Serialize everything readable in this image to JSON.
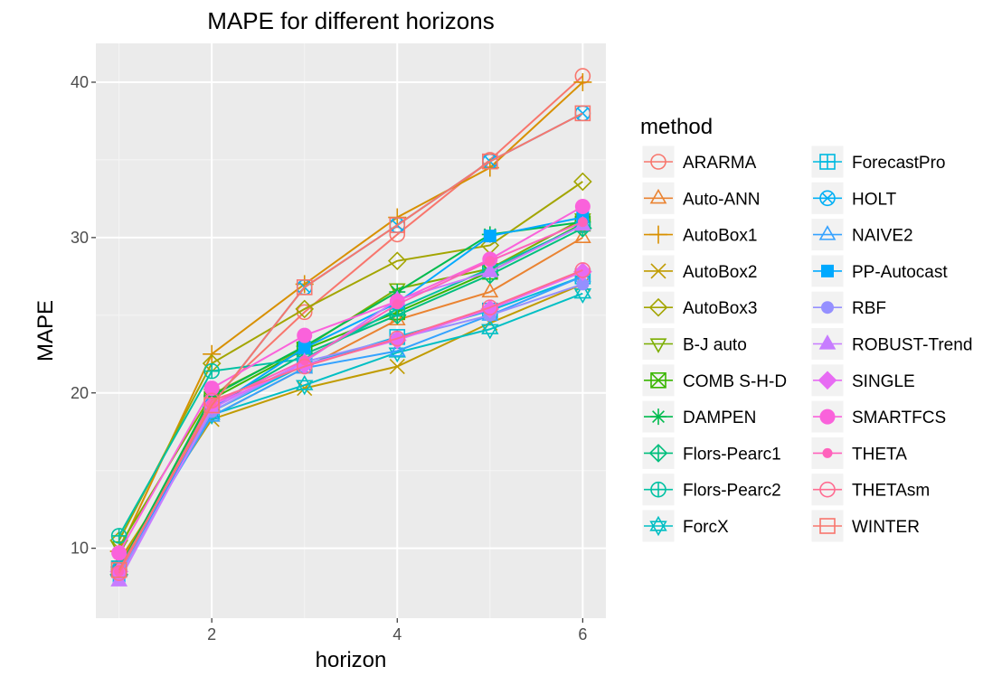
{
  "chart_data": {
    "type": "line",
    "title": "MAPE for different horizons",
    "xlabel": "horizon",
    "ylabel": "MAPE",
    "xlim": [
      0.75,
      6.25
    ],
    "ylim": [
      5.5,
      42.5
    ],
    "x_ticks": [
      2,
      4,
      6
    ],
    "y_ticks": [
      10,
      20,
      30,
      40
    ],
    "x_tick_labels": [
      "2",
      "4",
      "6"
    ],
    "y_tick_labels": [
      "10",
      "20",
      "30",
      "40"
    ],
    "grid": true,
    "background": "#ebebeb",
    "legend_title": "method",
    "legend_position": "right",
    "x": [
      1,
      2,
      3,
      4,
      5,
      6
    ],
    "series": [
      {
        "name": "ARARMA",
        "color": "#F8766D",
        "shape": "circle-open",
        "values": [
          8.5,
          19.6,
          25.2,
          30.2,
          35.0,
          40.4
        ]
      },
      {
        "name": "Auto-ANN",
        "color": "#EA8331",
        "shape": "triangle-open",
        "values": [
          9.0,
          18.5,
          21.6,
          24.7,
          26.5,
          30.0
        ]
      },
      {
        "name": "AutoBox1",
        "color": "#D89000",
        "shape": "plus",
        "values": [
          9.8,
          22.5,
          27.0,
          31.3,
          34.5,
          40.0
        ]
      },
      {
        "name": "AutoBox2",
        "color": "#C09B00",
        "shape": "cross",
        "values": [
          9.2,
          18.3,
          20.3,
          21.7,
          24.5,
          27.0
        ]
      },
      {
        "name": "AutoBox3",
        "color": "#A3A500",
        "shape": "diamond-open",
        "values": [
          10.5,
          21.9,
          25.4,
          28.5,
          29.5,
          33.6
        ]
      },
      {
        "name": "B-J auto",
        "color": "#7CAE00",
        "shape": "triangle-down-open",
        "values": [
          10.1,
          19.9,
          22.9,
          26.7,
          28.0,
          31.2
        ]
      },
      {
        "name": "COMB S-H-D",
        "color": "#39B600",
        "shape": "square-cross",
        "values": [
          8.7,
          19.6,
          22.8,
          25.2,
          27.8,
          30.9
        ]
      },
      {
        "name": "DAMPEN",
        "color": "#00BB4E",
        "shape": "asterisk",
        "values": [
          8.6,
          19.8,
          23.0,
          26.5,
          30.2,
          31.0
        ]
      },
      {
        "name": "Flors-Pearc1",
        "color": "#00BF7D",
        "shape": "diamond-plus",
        "values": [
          8.3,
          19.1,
          22.5,
          25.0,
          27.6,
          30.6
        ]
      },
      {
        "name": "Flors-Pearc2",
        "color": "#00C1A3",
        "shape": "circle-plus",
        "values": [
          10.8,
          21.4,
          22.2,
          25.4,
          28.0,
          30.8
        ]
      },
      {
        "name": "ForcX",
        "color": "#00BFC4",
        "shape": "star-david",
        "values": [
          8.5,
          18.6,
          20.5,
          22.6,
          24.1,
          26.4
        ]
      },
      {
        "name": "ForecastPro",
        "color": "#00BAE0",
        "shape": "square-plus",
        "values": [
          8.7,
          18.8,
          21.8,
          23.6,
          25.3,
          27.5
        ]
      },
      {
        "name": "HOLT",
        "color": "#00B0F6",
        "shape": "circle-cross",
        "values": [
          8.6,
          19.2,
          26.8,
          30.8,
          34.9,
          38.0
        ]
      },
      {
        "name": "NAIVE2",
        "color": "#35A2FF",
        "shape": "triangle-open",
        "values": [
          8.6,
          18.5,
          21.6,
          22.7,
          25.0,
          27.5
        ]
      },
      {
        "name": "PP-Autocast",
        "color": "#00A9FF",
        "shape": "square-filled",
        "values": [
          8.2,
          19.0,
          22.9,
          25.8,
          30.1,
          31.3
        ]
      },
      {
        "name": "RBF",
        "color": "#9590FF",
        "shape": "circle-filled",
        "values": [
          8.2,
          18.8,
          22.0,
          23.5,
          25.0,
          27.0
        ]
      },
      {
        "name": "ROBUST-Trend",
        "color": "#C77CFF",
        "shape": "triangle-filled",
        "values": [
          7.9,
          19.0,
          22.0,
          26.0,
          27.8,
          30.8
        ]
      },
      {
        "name": "SINGLE",
        "color": "#E76BF3",
        "shape": "diamond-filled",
        "values": [
          8.5,
          19.2,
          21.8,
          23.4,
          25.4,
          27.8
        ]
      },
      {
        "name": "SMARTFCS",
        "color": "#FA62DB",
        "shape": "circle-filled-large",
        "values": [
          9.7,
          20.3,
          23.7,
          25.9,
          28.6,
          32.0
        ]
      },
      {
        "name": "THETA",
        "color": "#FF62BC",
        "shape": "circle-filled-small",
        "values": [
          8.5,
          19.3,
          22.1,
          25.7,
          28.5,
          31.0
        ]
      },
      {
        "name": "THETAsm",
        "color": "#FF6C91",
        "shape": "circle-open",
        "values": [
          8.4,
          19.5,
          21.7,
          23.5,
          25.5,
          27.9
        ]
      },
      {
        "name": "WINTER",
        "color": "#F8766D",
        "shape": "square-open",
        "values": [
          8.6,
          19.2,
          26.8,
          30.8,
          34.9,
          38.0
        ]
      }
    ]
  }
}
